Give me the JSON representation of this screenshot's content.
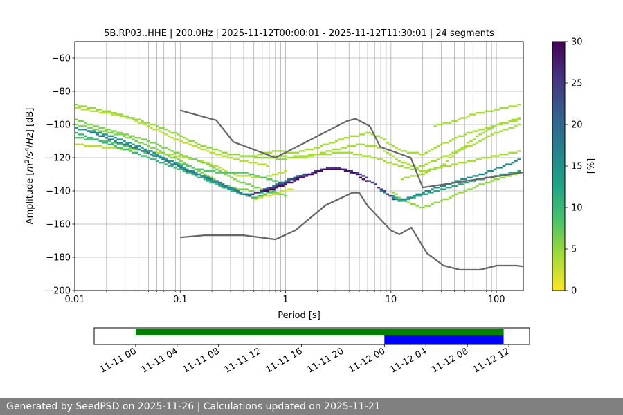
{
  "chart_data": [
    {
      "type": "heatmap",
      "title": "5B.RP03..HHE | 200.0Hz | 2025-11-12T00:00:01 - 2025-11-12T11:30:01 | 24 segments",
      "xlabel": "Period [s]",
      "ylabel_parts": [
        "Amplitude [",
        "m",
        "2",
        "/",
        "s",
        "4",
        "/",
        "Hz",
        "] [dB]"
      ],
      "xscale": "log",
      "xlim": [
        0.01,
        180
      ],
      "ylim": [
        -200,
        -50
      ],
      "xticks": [
        0.01,
        0.1,
        1,
        10,
        100
      ],
      "xtick_labels": [
        "0.01",
        "0.1",
        "1",
        "10",
        "100"
      ],
      "yticks": [
        -200,
        -180,
        -160,
        -140,
        -120,
        -100,
        -80,
        -60
      ],
      "ytick_labels": [
        "−200",
        "−180",
        "−160",
        "−140",
        "−120",
        "−100",
        "−80",
        "−60"
      ],
      "grid": true,
      "colorbar": {
        "label": "[%]",
        "range": [
          0,
          30
        ],
        "ticks": [
          0,
          5,
          10,
          15,
          20,
          25,
          30
        ],
        "colors": [
          "#fde725",
          "#a0da39",
          "#4ac16d",
          "#1fa187",
          "#277f8e",
          "#365c8d",
          "#46327e",
          "#440154"
        ]
      },
      "noise_models": [
        {
          "name": "NHNM",
          "color": "#666666",
          "points": [
            [
              0.1,
              -91.5
            ],
            [
              0.22,
              -97.4
            ],
            [
              0.32,
              -110.5
            ],
            [
              0.8,
              -120
            ],
            [
              3.8,
              -98
            ],
            [
              4.6,
              -96.5
            ],
            [
              6.3,
              -101
            ],
            [
              7.9,
              -113.5
            ],
            [
              15.4,
              -120
            ],
            [
              20,
              -138
            ],
            [
              354,
              -126
            ]
          ]
        },
        {
          "name": "NLNM",
          "color": "#666666",
          "points": [
            [
              0.1,
              -168
            ],
            [
              0.17,
              -166.7
            ],
            [
              0.4,
              -166.7
            ],
            [
              0.8,
              -169.2
            ],
            [
              1.24,
              -163.7
            ],
            [
              2.4,
              -148.6
            ],
            [
              4.3,
              -141.1
            ],
            [
              5,
              -141.1
            ],
            [
              6,
              -149
            ],
            [
              10,
              -163.8
            ],
            [
              12,
              -166.2
            ],
            [
              15.6,
              -162.1
            ],
            [
              21.9,
              -177.5
            ],
            [
              31.6,
              -185
            ],
            [
              45,
              -187.5
            ],
            [
              70,
              -187.5
            ],
            [
              101,
              -185
            ],
            [
              154,
              -185
            ],
            [
              328,
              -187.5
            ]
          ]
        }
      ],
      "psd_density": [
        {
          "percent": 29,
          "points": [
            [
              0.6,
              -141
            ],
            [
              0.9,
              -137
            ],
            [
              1.2,
              -134
            ],
            [
              1.6,
              -131
            ],
            [
              2.2,
              -127.5
            ],
            [
              2.8,
              -126.5
            ],
            [
              3.5,
              -127
            ],
            [
              4.5,
              -129.5
            ],
            [
              6,
              -134
            ]
          ]
        },
        {
          "percent": 25,
          "points": [
            [
              0.45,
              -143
            ],
            [
              0.6,
              -140
            ],
            [
              0.9,
              -136
            ],
            [
              1.3,
              -132
            ],
            [
              1.8,
              -129
            ],
            [
              2.5,
              -126
            ],
            [
              3.2,
              -126
            ],
            [
              4.2,
              -128
            ],
            [
              5.5,
              -131
            ],
            [
              7,
              -136
            ],
            [
              9,
              -141
            ],
            [
              11,
              -146
            ]
          ]
        },
        {
          "percent": 18,
          "points": [
            [
              0.012,
              -103
            ],
            [
              0.02,
              -108
            ],
            [
              0.03,
              -112
            ],
            [
              0.05,
              -117
            ],
            [
              0.08,
              -123
            ],
            [
              0.12,
              -128
            ],
            [
              0.2,
              -133
            ],
            [
              0.3,
              -138
            ],
            [
              0.45,
              -143
            ],
            [
              0.7,
              -138
            ],
            [
              1,
              -134
            ],
            [
              1.5,
              -130
            ]
          ]
        },
        {
          "percent": 16,
          "points": [
            [
              8,
              -140
            ],
            [
              10,
              -143
            ],
            [
              12,
              -146
            ],
            [
              15,
              -144
            ],
            [
              20,
              -141
            ],
            [
              30,
              -137
            ],
            [
              50,
              -133
            ],
            [
              80,
              -129
            ],
            [
              120,
              -125
            ],
            [
              170,
              -121
            ]
          ]
        },
        {
          "percent": 14,
          "points": [
            [
              0.01,
              -102
            ],
            [
              0.02,
              -106
            ],
            [
              0.04,
              -113
            ],
            [
              0.07,
              -120
            ],
            [
              0.1,
              -125
            ],
            [
              0.15,
              -130
            ],
            [
              0.25,
              -137
            ],
            [
              0.4,
              -142
            ],
            [
              0.6,
              -141
            ]
          ]
        },
        {
          "percent": 12,
          "points": [
            [
              10,
              -142
            ],
            [
              13,
              -146
            ],
            [
              18,
              -143
            ],
            [
              30,
              -139
            ],
            [
              60,
              -134
            ],
            [
              100,
              -131
            ],
            [
              170,
              -128
            ]
          ]
        },
        {
          "percent": 10,
          "points": [
            [
              0.01,
              -105
            ],
            [
              0.03,
              -115
            ],
            [
              0.06,
              -122
            ],
            [
              0.1,
              -127
            ],
            [
              0.2,
              -135
            ],
            [
              0.35,
              -141
            ],
            [
              0.5,
              -144
            ],
            [
              0.8,
              -140
            ]
          ]
        },
        {
          "percent": 8,
          "points": [
            [
              0.01,
              -108
            ],
            [
              0.02,
              -110
            ],
            [
              0.04,
              -115
            ],
            [
              0.08,
              -122
            ],
            [
              0.15,
              -127
            ],
            [
              0.25,
              -129
            ],
            [
              0.4,
              -129
            ],
            [
              0.7,
              -133
            ],
            [
              1,
              -136
            ]
          ]
        },
        {
          "percent": 6,
          "points": [
            [
              0.01,
              -97
            ],
            [
              0.02,
              -103
            ],
            [
              0.05,
              -110
            ],
            [
              0.1,
              -118
            ],
            [
              0.2,
              -125
            ],
            [
              0.35,
              -134
            ],
            [
              0.6,
              -139
            ],
            [
              1,
              -143
            ]
          ]
        },
        {
          "percent": 6,
          "points": [
            [
              0.01,
              -100
            ],
            [
              0.03,
              -107
            ],
            [
              0.06,
              -115
            ],
            [
              0.1,
              -122
            ],
            [
              0.18,
              -131
            ],
            [
              0.3,
              -138
            ],
            [
              0.5,
              -140
            ]
          ]
        },
        {
          "percent": 5,
          "points": [
            [
              10,
              -140
            ],
            [
              14,
              -147
            ],
            [
              20,
              -150
            ],
            [
              30,
              -146
            ],
            [
              50,
              -140
            ],
            [
              80,
              -135
            ],
            [
              130,
              -131
            ],
            [
              170,
              -129
            ]
          ]
        },
        {
          "percent": 5,
          "points": [
            [
              0.01,
              -88
            ],
            [
              0.02,
              -92
            ],
            [
              0.04,
              -97
            ],
            [
              0.08,
              -104
            ],
            [
              0.15,
              -112
            ],
            [
              0.3,
              -118
            ],
            [
              0.6,
              -120
            ],
            [
              1,
              -121
            ]
          ]
        },
        {
          "percent": 4,
          "points": [
            [
              0.5,
              -119
            ],
            [
              0.8,
              -116
            ],
            [
              1.2,
              -117
            ],
            [
              2,
              -114
            ],
            [
              3,
              -110
            ],
            [
              4.5,
              -107
            ],
            [
              6,
              -105
            ],
            [
              8,
              -108
            ],
            [
              10,
              -112
            ],
            [
              13,
              -116
            ],
            [
              20,
              -118
            ],
            [
              30,
              -112
            ],
            [
              50,
              -106
            ],
            [
              80,
              -102
            ],
            [
              120,
              -99
            ],
            [
              170,
              -96
            ]
          ]
        },
        {
          "percent": 4,
          "points": [
            [
              0.7,
              -119
            ],
            [
              1.5,
              -120
            ],
            [
              3,
              -115
            ],
            [
              5,
              -112
            ],
            [
              8,
              -114
            ],
            [
              12,
              -122
            ],
            [
              18,
              -126
            ],
            [
              30,
              -120
            ],
            [
              60,
              -112
            ],
            [
              100,
              -105
            ],
            [
              170,
              -100
            ]
          ]
        },
        {
          "percent": 4,
          "points": [
            [
              1,
              -120
            ],
            [
              2,
              -118
            ],
            [
              4,
              -117
            ],
            [
              7,
              -120
            ],
            [
              12,
              -125
            ],
            [
              20,
              -128
            ],
            [
              40,
              -124
            ],
            [
              80,
              -120
            ],
            [
              170,
              -116
            ]
          ]
        },
        {
          "percent": 4,
          "points": [
            [
              12,
              -133
            ],
            [
              20,
              -130
            ],
            [
              30,
              -125
            ],
            [
              45,
              -115
            ],
            [
              70,
              -106
            ],
            [
              100,
              -100
            ],
            [
              170,
              -97
            ]
          ]
        },
        {
          "percent": 4,
          "points": [
            [
              25,
              -101
            ],
            [
              40,
              -98
            ],
            [
              60,
              -94
            ],
            [
              100,
              -91
            ],
            [
              170,
              -88
            ]
          ]
        },
        {
          "percent": 3,
          "points": [
            [
              0.01,
              -90
            ],
            [
              0.03,
              -95
            ],
            [
              0.05,
              -101
            ],
            [
              0.1,
              -110
            ],
            [
              0.2,
              -117
            ],
            [
              0.4,
              -122
            ],
            [
              0.7,
              -125
            ]
          ]
        },
        {
          "percent": 3,
          "points": [
            [
              0.01,
              -112
            ],
            [
              0.05,
              -116
            ],
            [
              0.1,
              -119
            ],
            [
              0.2,
              -124
            ],
            [
              0.35,
              -131
            ],
            [
              0.6,
              -132
            ],
            [
              1,
              -128
            ]
          ]
        },
        {
          "percent": 2,
          "points": [
            [
              0.5,
              -145
            ],
            [
              0.8,
              -142
            ],
            [
              1.2,
              -138
            ]
          ]
        }
      ]
    },
    {
      "type": "timeline",
      "xtick_labels": [
        "11-11 00",
        "11-11 04",
        "11-11 08",
        "11-11 12",
        "11-11 16",
        "11-11 20",
        "11-12 00",
        "11-12 04",
        "11-12 08",
        "11-12 12"
      ],
      "range": [
        "2025-11-10T20:00",
        "2025-11-12T14:00"
      ],
      "bars": [
        {
          "color": "#008000",
          "start": "2025-11-11T00:00",
          "end": "2025-11-12T11:30",
          "row": "top"
        },
        {
          "color": "#0000ff",
          "start": "2025-11-12T00:00",
          "end": "2025-11-12T11:30",
          "row": "bottom"
        }
      ]
    }
  ],
  "footer": {
    "text": "Generated by SeedPSD on 2025-11-26 | Calculations updated on 2025-11-21"
  }
}
